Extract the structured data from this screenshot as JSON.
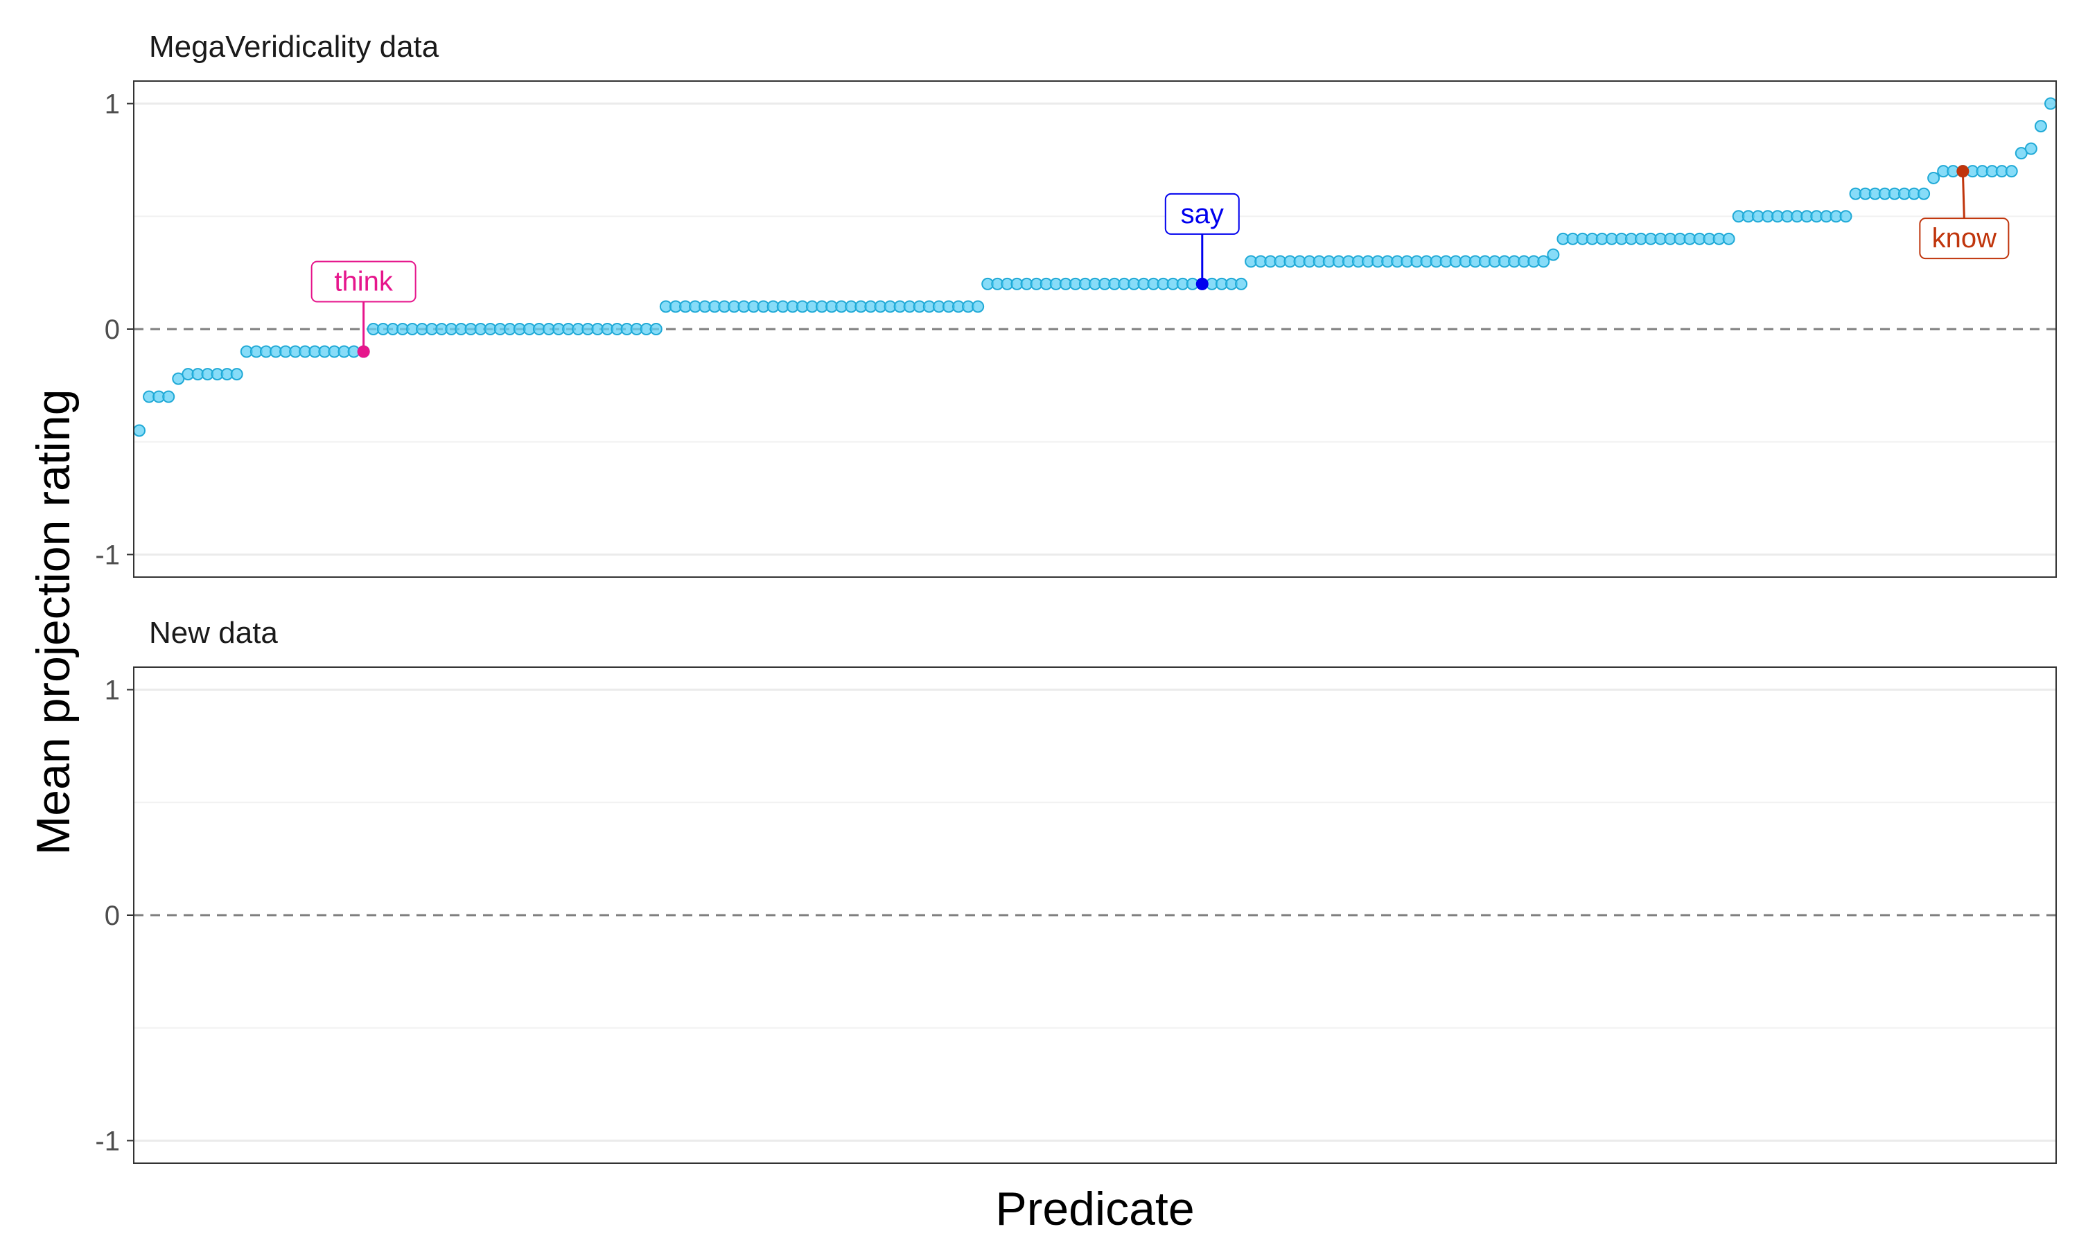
{
  "chart_data": {
    "type": "scatter",
    "ylabel": "Mean projection rating",
    "xlabel": "Predicate",
    "ylim": [
      -1.1,
      1.1
    ],
    "y_ticks": [
      "1",
      "0",
      "-1"
    ],
    "y_tick_values": [
      1,
      0,
      -1
    ],
    "y_minor_values": [
      0.5,
      -0.5
    ],
    "reference_line_y": 0,
    "grid": true,
    "point_color": "#5fd0f5",
    "panels": [
      {
        "title": "MegaVeridicality data",
        "groups": [
          {
            "y": -0.45,
            "n": 1
          },
          {
            "y": -0.3,
            "n": 3
          },
          {
            "y": -0.22,
            "n": 1
          },
          {
            "y": -0.2,
            "n": 6
          },
          {
            "y": -0.1,
            "n": 13
          },
          {
            "y": 0.0,
            "n": 30
          },
          {
            "y": 0.1,
            "n": 33
          },
          {
            "y": 0.2,
            "n": 27
          },
          {
            "y": 0.3,
            "n": 31
          },
          {
            "y": 0.33,
            "n": 1
          },
          {
            "y": 0.4,
            "n": 18
          },
          {
            "y": 0.5,
            "n": 12
          },
          {
            "y": 0.6,
            "n": 8
          },
          {
            "y": 0.67,
            "n": 1
          },
          {
            "y": 0.7,
            "n": 8
          },
          {
            "y": 0.78,
            "n": 1
          },
          {
            "y": 0.8,
            "n": 1
          },
          {
            "y": 0.9,
            "n": 1
          },
          {
            "y": 1.0,
            "n": 1
          }
        ],
        "highlights": [
          {
            "label": "think",
            "index": 23,
            "y": -0.1,
            "color": "#e6168c"
          },
          {
            "label": "say",
            "index": 109,
            "y": 0.2,
            "color": "#0000ee"
          },
          {
            "label": "know",
            "index": 187,
            "y": 0.7,
            "color": "#c0350c"
          }
        ]
      },
      {
        "title": "New data",
        "groups": [],
        "highlights": []
      }
    ]
  }
}
